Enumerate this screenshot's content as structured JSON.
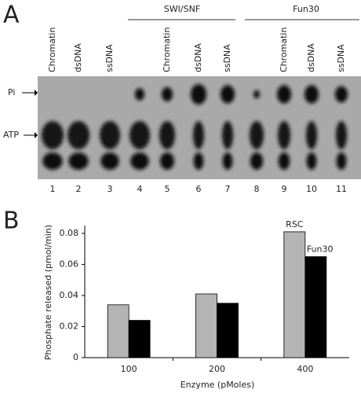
{
  "panel_a": {
    "label": "A",
    "groups": [
      {
        "name": "SWI/SNF"
      },
      {
        "name": "Fun30"
      }
    ],
    "markers": [
      "Pi",
      "ATP"
    ],
    "lanes": [
      {
        "number": "1",
        "label": "Chromatin"
      },
      {
        "number": "2",
        "label": "dsDNA"
      },
      {
        "number": "3",
        "label": "ssDNA"
      },
      {
        "number": "4"
      },
      {
        "number": "5",
        "label": "Chromatin"
      },
      {
        "number": "6",
        "label": "dsDNA"
      },
      {
        "number": "7",
        "label": "ssDNA"
      },
      {
        "number": "8"
      },
      {
        "number": "9",
        "label": "Chromatin"
      },
      {
        "number": "10",
        "label": "dsDNA"
      },
      {
        "number": "11",
        "label": "ssDNA"
      }
    ]
  },
  "panel_b_label": "B",
  "chart_data": {
    "type": "bar",
    "y_label": "Phosphate released (pmol/min)",
    "x_label": "Enzyme (pMoles)",
    "categories": [
      "100",
      "200",
      "400"
    ],
    "series": [
      {
        "name": "RSC",
        "color": "#b4b4b4",
        "values": [
          0.034,
          0.041,
          0.081
        ]
      },
      {
        "name": "Fun30",
        "color": "#000000",
        "values": [
          0.024,
          0.035,
          0.065
        ]
      }
    ],
    "ylim": [
      0,
      0.085
    ],
    "yticks": [
      0,
      0.02,
      0.04,
      0.06,
      0.08
    ]
  }
}
